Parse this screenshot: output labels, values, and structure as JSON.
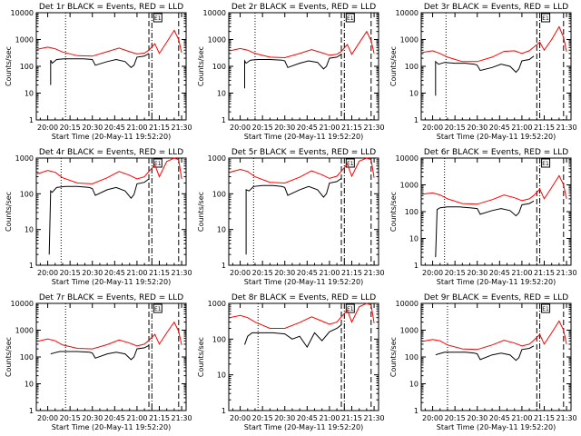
{
  "shared": {
    "xlabel": "Start Time (20-May-11 19:52:20)",
    "ylabel": "Counts/sec",
    "x_ticks": [
      "20:00",
      "20:15",
      "20:30",
      "20:45",
      "21:00",
      "21:15",
      "21:30"
    ],
    "y_ticks": [
      "1",
      "10",
      "100",
      "1000",
      "10000"
    ],
    "annotation": "E1",
    "colors": {
      "events": "#000000",
      "lld": "#ff0000",
      "axes": "#000000"
    }
  },
  "chart_data": [
    {
      "type": "line",
      "panel": "1",
      "title": "Det 1r BLACK = Events, RED = LLD",
      "ylim": [
        1,
        10000
      ],
      "yscale": "log",
      "xlim": [
        "19:52:20",
        "21:33:00"
      ],
      "series": [
        {
          "name": "Events",
          "x": [
            "20:02",
            "20:02",
            "20:03",
            "20:06",
            "20:11",
            "20:17",
            "20:24",
            "20:30",
            "20:32",
            "20:40",
            "20:46",
            "20:52",
            "20:56",
            "20:58",
            "21:00",
            "21:05",
            "21:08"
          ],
          "values": [
            20,
            170,
            130,
            180,
            190,
            190,
            190,
            180,
            110,
            150,
            180,
            150,
            90,
            110,
            220,
            240,
            300
          ]
        },
        {
          "name": "LLD",
          "x": [
            "19:53",
            "20:00",
            "20:05",
            "20:10",
            "20:20",
            "20:30",
            "20:40",
            "20:48",
            "20:55",
            "21:00",
            "21:05",
            "21:08",
            "21:12",
            "21:15",
            "21:20",
            "21:25",
            "21:28",
            "21:30"
          ],
          "values": [
            430,
            520,
            450,
            340,
            250,
            240,
            350,
            480,
            350,
            290,
            310,
            400,
            700,
            300,
            800,
            2200,
            1000,
            320
          ]
        }
      ],
      "vlines": {
        "dotted": [
          "20:12"
        ],
        "dashed": [
          "21:08",
          "21:28"
        ],
        "dashdot": [
          "21:10"
        ]
      }
    },
    {
      "type": "line",
      "panel": "2",
      "title": "Det 2r BLACK = Events, RED = LLD",
      "ylim": [
        1,
        10000
      ],
      "yscale": "log",
      "xlim": [
        "19:52:20",
        "21:33:00"
      ],
      "series": [
        {
          "name": "Events",
          "x": [
            "20:03",
            "20:03",
            "20:04",
            "20:07",
            "20:12",
            "20:20",
            "20:28",
            "20:30",
            "20:32",
            "20:40",
            "20:46",
            "20:52",
            "20:56",
            "20:58",
            "21:00",
            "21:05",
            "21:08"
          ],
          "values": [
            15,
            160,
            130,
            170,
            180,
            180,
            170,
            160,
            90,
            130,
            160,
            140,
            80,
            100,
            200,
            220,
            280
          ]
        },
        {
          "name": "LLD",
          "x": [
            "19:53",
            "20:00",
            "20:05",
            "20:10",
            "20:20",
            "20:30",
            "20:40",
            "20:48",
            "20:55",
            "21:00",
            "21:05",
            "21:08",
            "21:12",
            "21:15",
            "21:20",
            "21:25",
            "21:28",
            "21:30"
          ],
          "values": [
            380,
            460,
            400,
            300,
            220,
            210,
            300,
            420,
            320,
            260,
            280,
            360,
            650,
            280,
            750,
            2000,
            900,
            300
          ]
        }
      ],
      "vlines": {
        "dotted": [
          "20:10"
        ],
        "dashed": [
          "21:08",
          "21:28"
        ],
        "dashdot": [
          "21:10"
        ]
      }
    },
    {
      "type": "line",
      "panel": "3",
      "title": "Det 3r BLACK = Events, RED = LLD",
      "ylim": [
        1,
        10000
      ],
      "yscale": "log",
      "xlim": [
        "19:52:20",
        "21:33:00"
      ],
      "series": [
        {
          "name": "Events",
          "x": [
            "20:02",
            "20:02",
            "20:04",
            "20:08",
            "20:15",
            "20:22",
            "20:28",
            "20:30",
            "20:32",
            "20:40",
            "20:46",
            "20:52",
            "20:56",
            "20:58",
            "21:00",
            "21:05",
            "21:08"
          ],
          "values": [
            8,
            150,
            120,
            140,
            130,
            130,
            120,
            110,
            70,
            90,
            120,
            100,
            60,
            80,
            160,
            180,
            240
          ]
        },
        {
          "name": "LLD",
          "x": [
            "19:53",
            "20:00",
            "20:05",
            "20:10",
            "20:20",
            "20:30",
            "20:40",
            "20:48",
            "20:55",
            "21:00",
            "21:05",
            "21:08",
            "21:12",
            "21:15",
            "21:20",
            "21:25",
            "21:28",
            "21:30"
          ],
          "values": [
            330,
            380,
            300,
            220,
            150,
            150,
            220,
            360,
            380,
            300,
            380,
            520,
            800,
            400,
            1000,
            3000,
            1200,
            350
          ]
        }
      ],
      "vlines": {
        "dotted": [
          "20:09"
        ],
        "dashed": [
          "21:10",
          "21:28"
        ],
        "dashdot": [
          "21:12"
        ]
      }
    },
    {
      "type": "line",
      "panel": "4",
      "title": "Det 4r BLACK = Events, RED = LLD",
      "ylim": [
        1,
        1000
      ],
      "yscale": "log",
      "xlim": [
        "19:52:20",
        "21:33:00"
      ],
      "series": [
        {
          "name": "Events",
          "x": [
            "20:01",
            "20:02",
            "20:03",
            "20:06",
            "20:12",
            "20:20",
            "20:28",
            "20:30",
            "20:32",
            "20:40",
            "20:46",
            "20:52",
            "20:56",
            "20:58",
            "21:00",
            "21:05",
            "21:08"
          ],
          "values": [
            2,
            120,
            110,
            150,
            160,
            160,
            150,
            140,
            90,
            130,
            150,
            120,
            75,
            95,
            190,
            210,
            260
          ]
        },
        {
          "name": "LLD",
          "x": [
            "19:53",
            "20:00",
            "20:05",
            "20:10",
            "20:20",
            "20:30",
            "20:40",
            "20:48",
            "20:55",
            "21:00",
            "21:05",
            "21:08",
            "21:12",
            "21:15",
            "21:20",
            "21:25",
            "21:28",
            "21:30"
          ],
          "values": [
            360,
            450,
            400,
            280,
            200,
            190,
            280,
            420,
            330,
            260,
            300,
            420,
            650,
            300,
            800,
            1000,
            900,
            260
          ]
        }
      ],
      "vlines": {
        "dotted": [
          "20:09"
        ],
        "dashed": [
          "21:08",
          "21:28"
        ],
        "dashdot": [
          "21:10"
        ]
      }
    },
    {
      "type": "line",
      "panel": "5",
      "title": "Det 5r BLACK = Events, RED = LLD",
      "ylim": [
        1,
        1000
      ],
      "yscale": "log",
      "xlim": [
        "19:52:20",
        "21:33:00"
      ],
      "series": [
        {
          "name": "Events",
          "x": [
            "20:04",
            "20:04",
            "20:06",
            "20:09",
            "20:15",
            "20:22",
            "20:28",
            "20:30",
            "20:32",
            "20:40",
            "20:46",
            "20:52",
            "20:56",
            "20:58",
            "21:00",
            "21:05",
            "21:08"
          ],
          "values": [
            2,
            130,
            120,
            160,
            170,
            170,
            160,
            150,
            90,
            130,
            160,
            130,
            80,
            100,
            200,
            220,
            270
          ]
        },
        {
          "name": "LLD",
          "x": [
            "19:53",
            "20:00",
            "20:05",
            "20:10",
            "20:20",
            "20:30",
            "20:40",
            "20:48",
            "20:55",
            "21:00",
            "21:05",
            "21:08",
            "21:12",
            "21:15",
            "21:20",
            "21:25",
            "21:28",
            "21:30"
          ],
          "values": [
            400,
            480,
            420,
            300,
            210,
            200,
            290,
            440,
            340,
            270,
            310,
            430,
            680,
            310,
            820,
            1000,
            900,
            280
          ]
        }
      ],
      "vlines": {
        "dotted": [
          "20:09"
        ],
        "dashed": [
          "21:08",
          "21:28"
        ],
        "dashdot": [
          "21:10"
        ]
      }
    },
    {
      "type": "line",
      "panel": "6",
      "title": "Det 6r BLACK = Events, RED = LLD",
      "ylim": [
        1,
        10000
      ],
      "yscale": "log",
      "xlim": [
        "19:52:20",
        "21:33:00"
      ],
      "series": [
        {
          "name": "Events",
          "x": [
            "20:02",
            "20:03",
            "20:05",
            "20:10",
            "20:18",
            "20:25",
            "20:30",
            "20:32",
            "20:40",
            "20:46",
            "20:52",
            "20:56",
            "20:58",
            "21:00",
            "21:05",
            "21:08"
          ],
          "values": [
            2,
            120,
            140,
            150,
            150,
            140,
            130,
            80,
            110,
            130,
            110,
            70,
            90,
            180,
            200,
            250
          ]
        },
        {
          "name": "LLD",
          "x": [
            "19:53",
            "20:00",
            "20:05",
            "20:10",
            "20:20",
            "20:30",
            "20:40",
            "20:48",
            "20:55",
            "21:00",
            "21:05",
            "21:08",
            "21:12",
            "21:15",
            "21:20",
            "21:25",
            "21:28",
            "21:30"
          ],
          "values": [
            450,
            500,
            420,
            300,
            200,
            190,
            280,
            420,
            330,
            260,
            300,
            400,
            700,
            300,
            800,
            2200,
            1000,
            300
          ]
        }
      ],
      "vlines": {
        "dotted": [
          "20:08"
        ],
        "dashed": [
          "21:10",
          "21:28"
        ],
        "dashdot": [
          "21:12"
        ]
      }
    },
    {
      "type": "line",
      "panel": "7",
      "title": "Det 7r BLACK = Events, RED = LLD",
      "ylim": [
        1,
        10000
      ],
      "yscale": "log",
      "xlim": [
        "19:52:20",
        "21:33:00"
      ],
      "series": [
        {
          "name": "Events",
          "x": [
            "20:02",
            "20:04",
            "20:08",
            "20:14",
            "20:20",
            "20:28",
            "20:30",
            "20:32",
            "20:40",
            "20:46",
            "20:52",
            "20:56",
            "20:58",
            "21:00",
            "21:05",
            "21:08"
          ],
          "values": [
            130,
            140,
            160,
            160,
            160,
            150,
            140,
            90,
            130,
            150,
            130,
            80,
            100,
            200,
            220,
            270
          ]
        },
        {
          "name": "LLD",
          "x": [
            "19:53",
            "20:00",
            "20:05",
            "20:10",
            "20:20",
            "20:30",
            "20:40",
            "20:48",
            "20:55",
            "21:00",
            "21:05",
            "21:08",
            "21:12",
            "21:15",
            "21:20",
            "21:25",
            "21:28",
            "21:30"
          ],
          "values": [
            380,
            470,
            400,
            280,
            210,
            200,
            290,
            430,
            330,
            260,
            300,
            420,
            700,
            300,
            800,
            2000,
            900,
            280
          ]
        }
      ],
      "vlines": {
        "dotted": [
          "20:12"
        ],
        "dashed": [
          "21:08",
          "21:28"
        ],
        "dashdot": [
          "21:10"
        ]
      }
    },
    {
      "type": "line",
      "panel": "8",
      "title": "Det 8r BLACK = Events, RED = LLD",
      "ylim": [
        1,
        1000
      ],
      "yscale": "log",
      "xlim": [
        "19:52:20",
        "21:33:00"
      ],
      "series": [
        {
          "name": "Events",
          "x": [
            "20:03",
            "20:05",
            "20:08",
            "20:14",
            "20:22",
            "20:30",
            "20:35",
            "20:40",
            "20:45",
            "20:50",
            "20:55",
            "21:00",
            "21:05",
            "21:08"
          ],
          "values": [
            70,
            120,
            150,
            150,
            150,
            140,
            100,
            120,
            60,
            150,
            90,
            160,
            200,
            250
          ]
        },
        {
          "name": "LLD",
          "x": [
            "19:53",
            "20:00",
            "20:05",
            "20:10",
            "20:20",
            "20:30",
            "20:40",
            "20:48",
            "20:55",
            "21:00",
            "21:05",
            "21:08",
            "21:12",
            "21:15",
            "21:20",
            "21:25",
            "21:28",
            "21:30"
          ],
          "values": [
            400,
            460,
            400,
            300,
            200,
            200,
            290,
            420,
            320,
            260,
            300,
            420,
            650,
            300,
            800,
            1000,
            900,
            280
          ]
        }
      ],
      "vlines": {
        "dotted": [
          "20:12"
        ],
        "dashed": [
          "21:08",
          "21:28"
        ],
        "dashdot": [
          "21:10"
        ]
      }
    },
    {
      "type": "line",
      "panel": "9",
      "title": "Det 9r BLACK = Events, RED = LLD",
      "ylim": [
        1,
        10000
      ],
      "yscale": "log",
      "xlim": [
        "19:52:20",
        "21:33:00"
      ],
      "series": [
        {
          "name": "Events",
          "x": [
            "20:02",
            "20:04",
            "20:08",
            "20:14",
            "20:22",
            "20:28",
            "20:30",
            "20:32",
            "20:40",
            "20:46",
            "20:52",
            "20:56",
            "20:58",
            "21:00",
            "21:05",
            "21:08"
          ],
          "values": [
            120,
            130,
            150,
            150,
            150,
            140,
            130,
            80,
            120,
            140,
            120,
            75,
            95,
            190,
            210,
            260
          ]
        },
        {
          "name": "LLD",
          "x": [
            "19:53",
            "20:00",
            "20:05",
            "20:10",
            "20:20",
            "20:30",
            "20:40",
            "20:48",
            "20:55",
            "21:00",
            "21:05",
            "21:08",
            "21:12",
            "21:15",
            "21:20",
            "21:25",
            "21:28",
            "21:30"
          ],
          "values": [
            380,
            450,
            400,
            280,
            200,
            190,
            280,
            420,
            330,
            260,
            300,
            420,
            700,
            300,
            800,
            2200,
            1000,
            300
          ]
        }
      ],
      "vlines": {
        "dotted": [
          "20:10"
        ],
        "dashed": [
          "21:10",
          "21:28"
        ],
        "dashdot": [
          "21:12"
        ]
      }
    }
  ]
}
